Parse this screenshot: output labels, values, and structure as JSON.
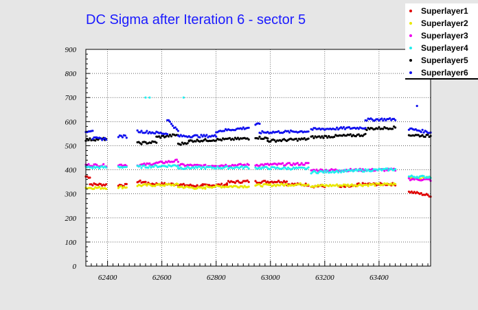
{
  "chart_data": {
    "type": "scatter",
    "title": "DC Sigma after Iteration 6 - sector 5",
    "xlabel": "",
    "ylabel": "",
    "xlim": [
      62320,
      63590
    ],
    "ylim": [
      0,
      900
    ],
    "xticks": [
      62400,
      62600,
      62800,
      63000,
      63200,
      63400
    ],
    "yticks": [
      0,
      100,
      200,
      300,
      400,
      500,
      600,
      700,
      800,
      900
    ],
    "grid": true,
    "legend_position": "top-right",
    "series": [
      {
        "name": "Superlayer1",
        "color": "#e00000",
        "segments": [
          {
            "x0": 62320,
            "x1": 62335,
            "y0": 372,
            "y1": 370
          },
          {
            "x0": 62335,
            "x1": 62395,
            "y0": 340,
            "y1": 338
          },
          {
            "x0": 62440,
            "x1": 62470,
            "y0": 337,
            "y1": 336
          },
          {
            "x0": 62510,
            "x1": 62540,
            "y0": 352,
            "y1": 348
          },
          {
            "x0": 62540,
            "x1": 62660,
            "y0": 342,
            "y1": 340
          },
          {
            "x0": 62660,
            "x1": 62750,
            "y0": 338,
            "y1": 332
          },
          {
            "x0": 62750,
            "x1": 62840,
            "y0": 335,
            "y1": 338
          },
          {
            "x0": 62840,
            "x1": 62920,
            "y0": 348,
            "y1": 352
          },
          {
            "x0": 62945,
            "x1": 63060,
            "y0": 350,
            "y1": 352
          },
          {
            "x0": 63060,
            "x1": 63140,
            "y0": 340,
            "y1": 338
          },
          {
            "x0": 63150,
            "x1": 63200,
            "y0": 332,
            "y1": 332
          },
          {
            "x0": 63250,
            "x1": 63320,
            "y0": 328,
            "y1": 332
          },
          {
            "x0": 63320,
            "x1": 63460,
            "y0": 340,
            "y1": 340
          },
          {
            "x0": 63510,
            "x1": 63590,
            "y0": 310,
            "y1": 292
          }
        ]
      },
      {
        "name": "Superlayer2",
        "color": "#e8e800",
        "segments": [
          {
            "x0": 62320,
            "x1": 62395,
            "y0": 325,
            "y1": 325
          },
          {
            "x0": 62440,
            "x1": 62470,
            "y0": 328,
            "y1": 328
          },
          {
            "x0": 62510,
            "x1": 62660,
            "y0": 335,
            "y1": 338
          },
          {
            "x0": 62660,
            "x1": 62760,
            "y0": 330,
            "y1": 322
          },
          {
            "x0": 62760,
            "x1": 62920,
            "y0": 330,
            "y1": 332
          },
          {
            "x0": 62945,
            "x1": 63140,
            "y0": 335,
            "y1": 340
          },
          {
            "x0": 63150,
            "x1": 63460,
            "y0": 333,
            "y1": 340
          },
          {
            "x0": 63510,
            "x1": 63590,
            "y0": 368,
            "y1": 365
          }
        ]
      },
      {
        "name": "Superlayer3",
        "color": "#ee00ee",
        "segments": [
          {
            "x0": 62320,
            "x1": 62395,
            "y0": 420,
            "y1": 418
          },
          {
            "x0": 62440,
            "x1": 62470,
            "y0": 420,
            "y1": 420
          },
          {
            "x0": 62510,
            "x1": 62660,
            "y0": 418,
            "y1": 438
          },
          {
            "x0": 62660,
            "x1": 62780,
            "y0": 420,
            "y1": 415
          },
          {
            "x0": 62780,
            "x1": 62920,
            "y0": 418,
            "y1": 420
          },
          {
            "x0": 62945,
            "x1": 63140,
            "y0": 420,
            "y1": 425
          },
          {
            "x0": 63150,
            "x1": 63460,
            "y0": 398,
            "y1": 400
          },
          {
            "x0": 63510,
            "x1": 63590,
            "y0": 362,
            "y1": 358
          }
        ]
      },
      {
        "name": "Superlayer4",
        "color": "#22eeee",
        "segments": [
          {
            "x0": 62320,
            "x1": 62395,
            "y0": 410,
            "y1": 410
          },
          {
            "x0": 62440,
            "x1": 62470,
            "y0": 412,
            "y1": 412
          },
          {
            "x0": 62510,
            "x1": 62660,
            "y0": 412,
            "y1": 418
          },
          {
            "x0": 62660,
            "x1": 62920,
            "y0": 408,
            "y1": 410
          },
          {
            "x0": 62945,
            "x1": 63140,
            "y0": 408,
            "y1": 405
          },
          {
            "x0": 63150,
            "x1": 63460,
            "y0": 390,
            "y1": 402
          },
          {
            "x0": 63510,
            "x1": 63590,
            "y0": 372,
            "y1": 370
          }
        ]
      },
      {
        "name": "Superlayer5",
        "color": "#000000",
        "segments": [
          {
            "x0": 62320,
            "x1": 62395,
            "y0": 525,
            "y1": 528
          },
          {
            "x0": 62510,
            "x1": 62580,
            "y0": 510,
            "y1": 515
          },
          {
            "x0": 62580,
            "x1": 62660,
            "y0": 535,
            "y1": 545
          },
          {
            "x0": 62660,
            "x1": 62700,
            "y0": 505,
            "y1": 515
          },
          {
            "x0": 62700,
            "x1": 62920,
            "y0": 520,
            "y1": 530
          },
          {
            "x0": 62945,
            "x1": 62990,
            "y0": 535,
            "y1": 530
          },
          {
            "x0": 62990,
            "x1": 63140,
            "y0": 520,
            "y1": 528
          },
          {
            "x0": 63150,
            "x1": 63350,
            "y0": 535,
            "y1": 545
          },
          {
            "x0": 63350,
            "x1": 63460,
            "y0": 570,
            "y1": 575
          },
          {
            "x0": 63510,
            "x1": 63590,
            "y0": 545,
            "y1": 540
          }
        ]
      },
      {
        "name": "Superlayer6",
        "color": "#1010ee",
        "segments": [
          {
            "x0": 62320,
            "x1": 62345,
            "y0": 560,
            "y1": 565
          },
          {
            "x0": 62345,
            "x1": 62395,
            "y0": 530,
            "y1": 528
          },
          {
            "x0": 62440,
            "x1": 62470,
            "y0": 540,
            "y1": 538
          },
          {
            "x0": 62510,
            "x1": 62620,
            "y0": 560,
            "y1": 550
          },
          {
            "x0": 62620,
            "x1": 62660,
            "y0": 610,
            "y1": 560
          },
          {
            "x0": 62660,
            "x1": 62800,
            "y0": 540,
            "y1": 540
          },
          {
            "x0": 62800,
            "x1": 62920,
            "y0": 560,
            "y1": 575
          },
          {
            "x0": 62945,
            "x1": 62960,
            "y0": 588,
            "y1": 588
          },
          {
            "x0": 62960,
            "x1": 63140,
            "y0": 555,
            "y1": 560
          },
          {
            "x0": 63150,
            "x1": 63350,
            "y0": 568,
            "y1": 575
          },
          {
            "x0": 63350,
            "x1": 63460,
            "y0": 608,
            "y1": 610
          },
          {
            "x0": 63510,
            "x1": 63590,
            "y0": 570,
            "y1": 555
          }
        ]
      }
    ],
    "outliers": [
      {
        "series": "Superlayer4",
        "points": [
          [
            62540,
            700
          ],
          [
            62555,
            700
          ],
          [
            62680,
            700
          ]
        ]
      },
      {
        "series": "Superlayer6",
        "points": [
          [
            63540,
            665
          ]
        ]
      }
    ]
  }
}
